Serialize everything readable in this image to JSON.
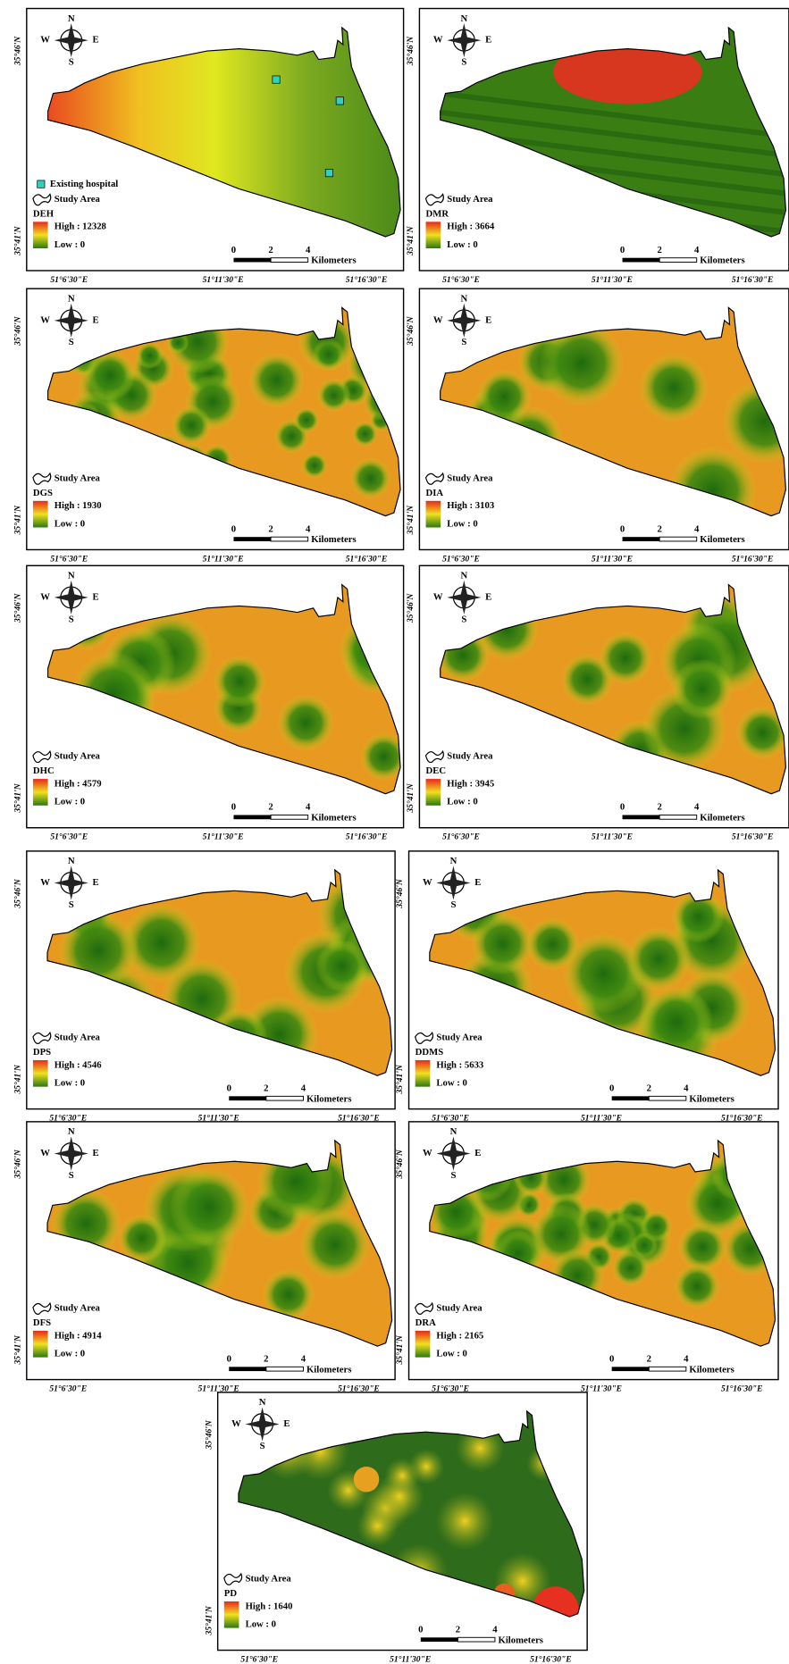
{
  "common": {
    "compass": {
      "n": "N",
      "s": "S",
      "w": "W",
      "e": "E"
    },
    "study_area": "Study Area",
    "scale_ticks": [
      0,
      2,
      4
    ],
    "scale_unit": "Kilometers",
    "lat": [
      "35°46'N",
      "35°41'N"
    ],
    "lon": [
      "51°6'30\"E",
      "51°11'30\"E",
      "51°16'30\"E"
    ]
  },
  "panels": [
    {
      "code": "DEH",
      "high": "High : 12328",
      "low": "Low : 0",
      "hospital_legend": "Existing hospital"
    },
    {
      "code": "DMR",
      "high": "High : 3664",
      "low": "Low : 0"
    },
    {
      "code": "DGS",
      "high": "High : 1930",
      "low": "Low : 0"
    },
    {
      "code": "DIA",
      "high": "High : 3103",
      "low": "Low : 0"
    },
    {
      "code": "DHC",
      "high": "High : 4579",
      "low": "Low : 0"
    },
    {
      "code": "DEC",
      "high": "High : 3945",
      "low": "Low : 0"
    },
    {
      "code": "DPS",
      "high": "High : 4546",
      "low": "Low : 0"
    },
    {
      "code": "DDMS",
      "high": "High : 5633",
      "low": "Low : 0"
    },
    {
      "code": "DFS",
      "high": "High : 4914",
      "low": "Low : 0"
    },
    {
      "code": "DRA",
      "high": "High : 2165",
      "low": "Low : 0"
    },
    {
      "code": "PD",
      "high": "High : 1640",
      "low": "Low : 0"
    }
  ]
}
